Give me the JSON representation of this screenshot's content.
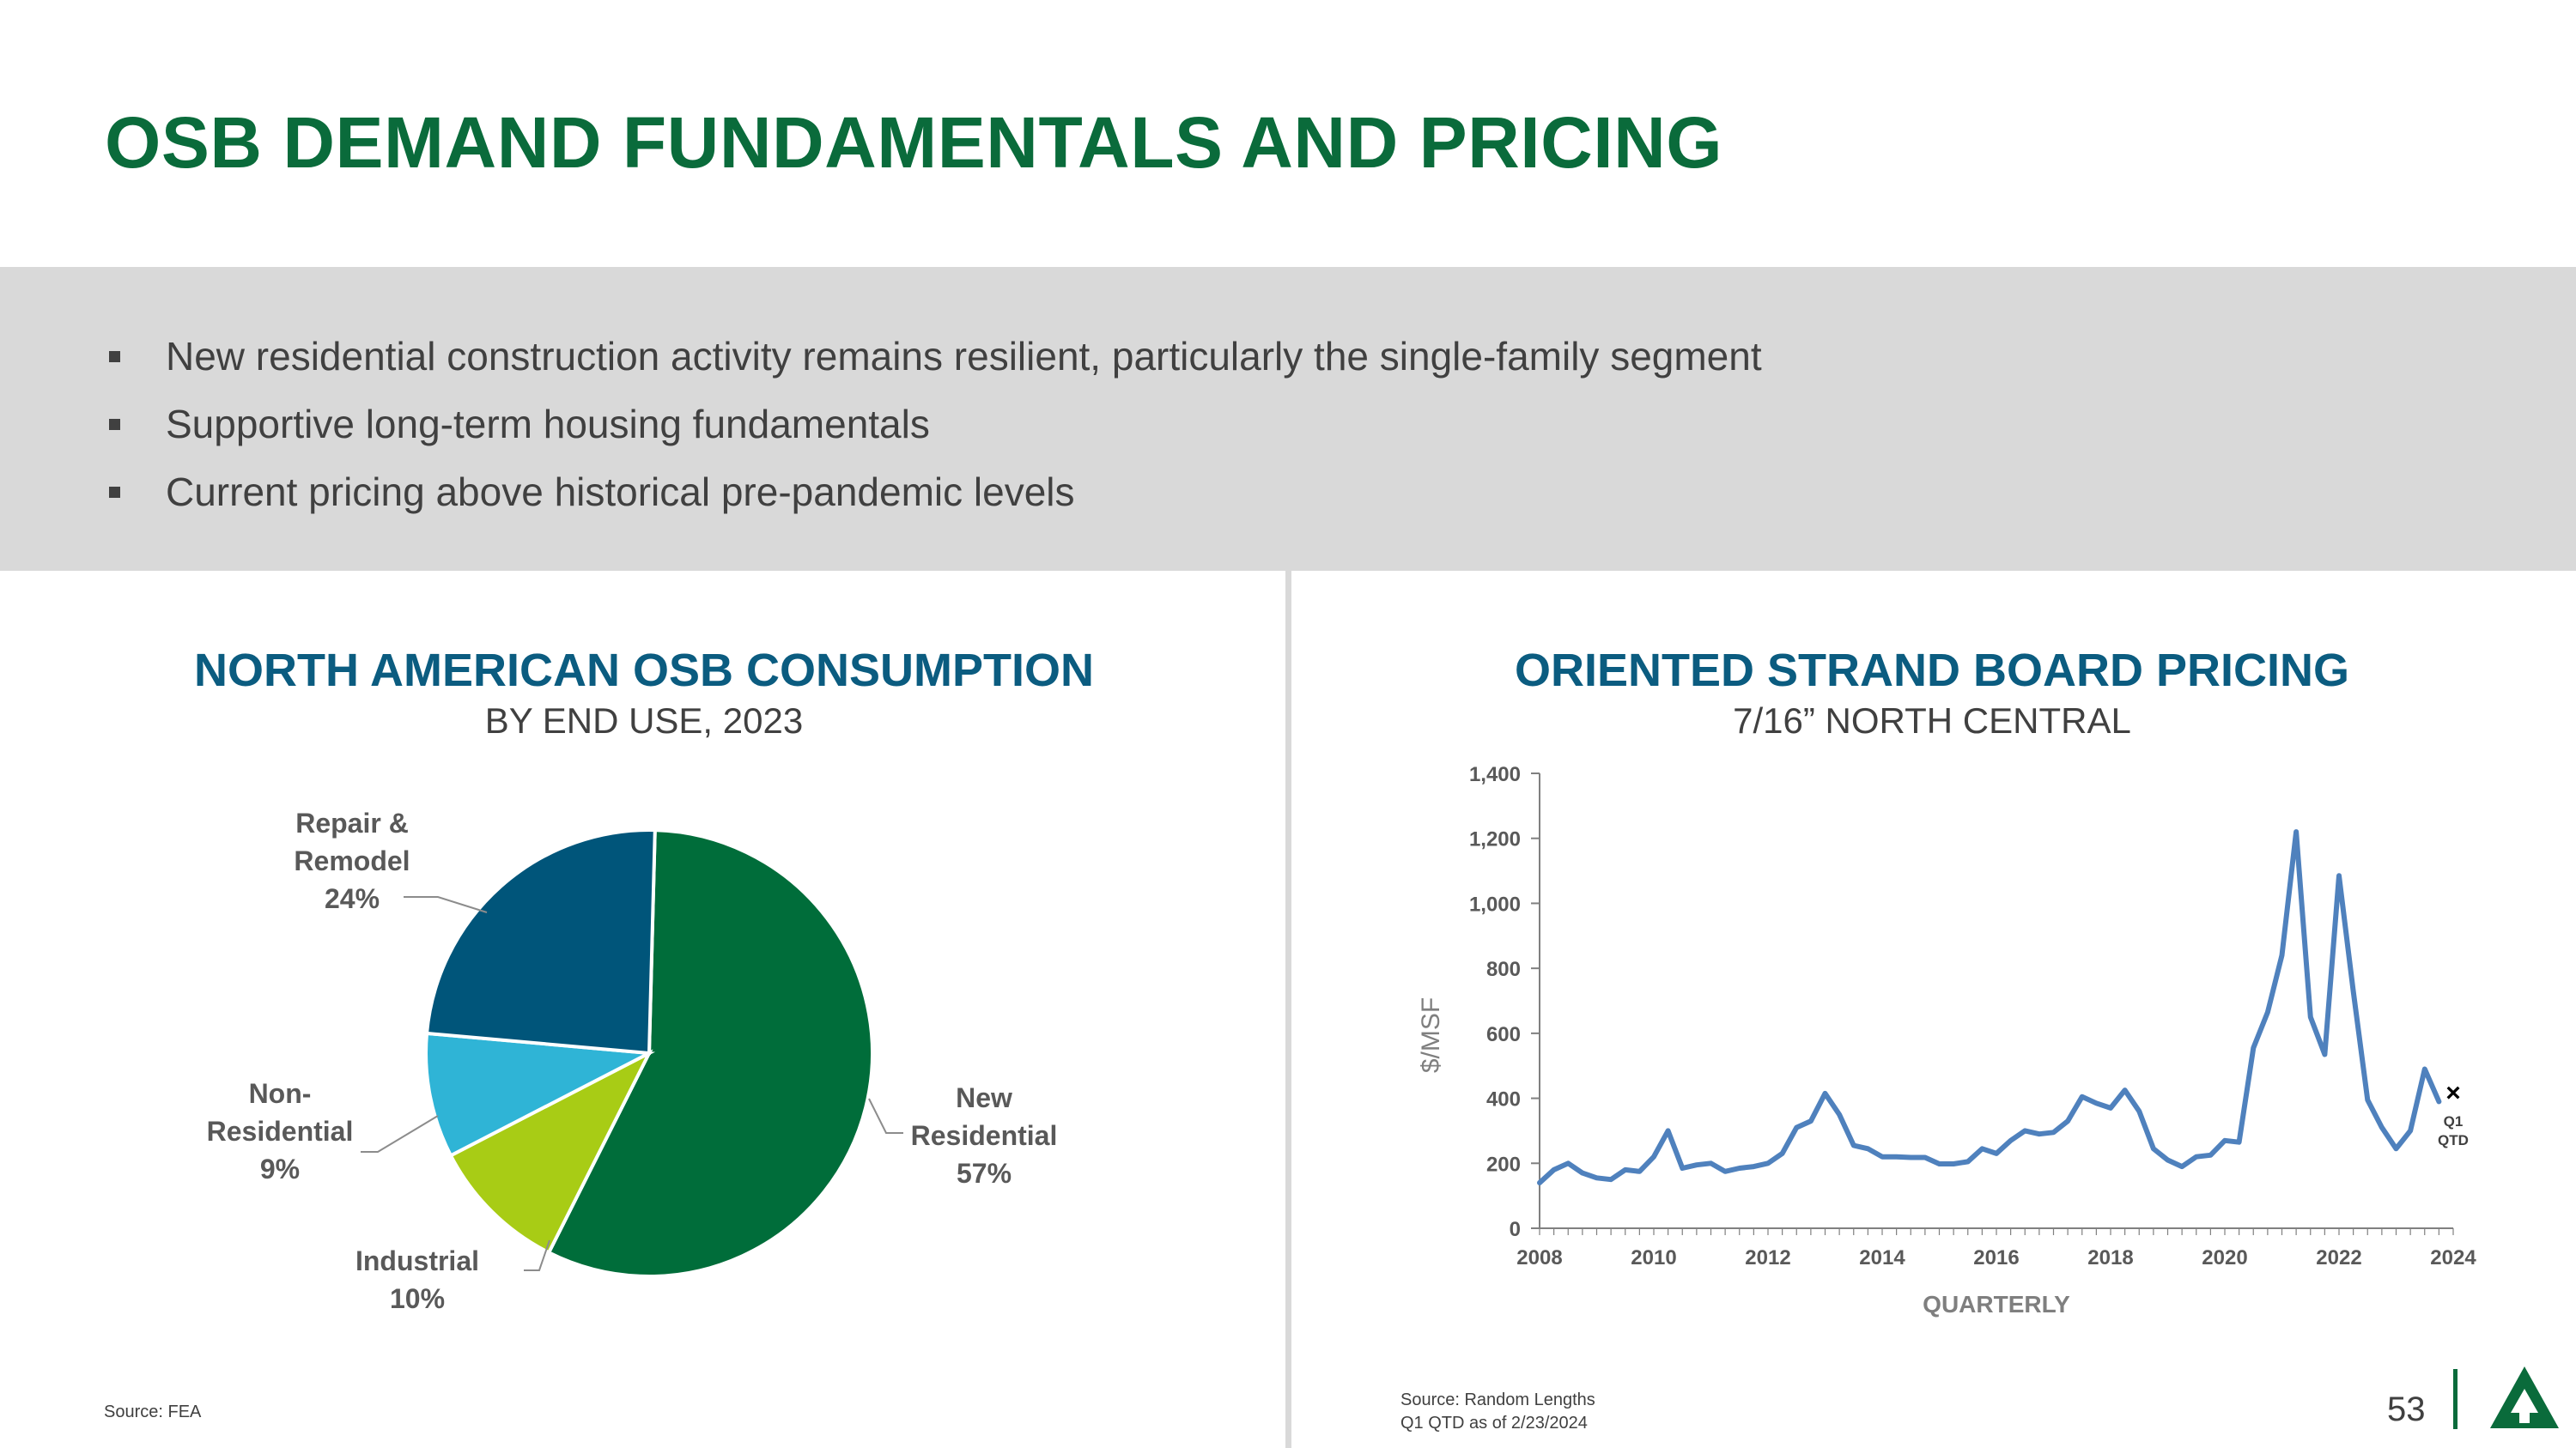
{
  "header": {
    "title": "OSB DEMAND FUNDAMENTALS AND PRICING"
  },
  "bullets": [
    "New residential construction activity remains resilient, particularly the single-family segment",
    "Supportive long-term housing fundamentals",
    "Current pricing above historical pre-pandemic levels"
  ],
  "left_panel": {
    "title": "NORTH AMERICAN OSB CONSUMPTION",
    "subtitle": "BY END USE, 2023",
    "source": "Source: FEA"
  },
  "right_panel": {
    "title": "ORIENTED STRAND BOARD PRICING",
    "subtitle": "7/16” NORTH CENTRAL",
    "source_line1": "Source: Random Lengths",
    "source_line2": "Q1 QTD as of 2/23/2024"
  },
  "footer": {
    "page_number": "53"
  },
  "colors": {
    "title_green": "#0a6b3b",
    "chart_title_blue": "#0b5c80",
    "line_blue": "#4f81bd"
  },
  "chart_data": [
    {
      "type": "pie",
      "categories": [
        "New Residential",
        "Industrial",
        "Non-Residential",
        "Repair & Remodel"
      ],
      "values": [
        57,
        10,
        9,
        24
      ],
      "labels": [
        [
          "New",
          "Residential",
          "57%"
        ],
        [
          "Industrial",
          "10%"
        ],
        [
          "Non-",
          "Residential",
          "9%"
        ],
        [
          "Repair &",
          "Remodel",
          "24%"
        ]
      ],
      "colors": [
        "#006d3a",
        "#a8cc15",
        "#2fb4d6",
        "#00557a"
      ]
    },
    {
      "type": "line",
      "xlabel": "QUARTERLY",
      "ylabel": "$/MSF",
      "ylim": [
        0,
        1400
      ],
      "xlim": [
        2008,
        2024
      ],
      "yticks": [
        "0",
        "200",
        "400",
        "600",
        "800",
        "1,000",
        "1,200",
        "1,400"
      ],
      "xticks": [
        "2008",
        "2010",
        "2012",
        "2014",
        "2016",
        "2018",
        "2020",
        "2022",
        "2024"
      ],
      "x": [
        2008.0,
        2008.25,
        2008.5,
        2008.75,
        2009.0,
        2009.25,
        2009.5,
        2009.75,
        2010.0,
        2010.25,
        2010.5,
        2010.75,
        2011.0,
        2011.25,
        2011.5,
        2011.75,
        2012.0,
        2012.25,
        2012.5,
        2012.75,
        2013.0,
        2013.25,
        2013.5,
        2013.75,
        2014.0,
        2014.25,
        2014.5,
        2014.75,
        2015.0,
        2015.25,
        2015.5,
        2015.75,
        2016.0,
        2016.25,
        2016.5,
        2016.75,
        2017.0,
        2017.25,
        2017.5,
        2017.75,
        2018.0,
        2018.25,
        2018.5,
        2018.75,
        2019.0,
        2019.25,
        2019.5,
        2019.75,
        2020.0,
        2020.25,
        2020.5,
        2020.75,
        2021.0,
        2021.25,
        2021.5,
        2021.75,
        2022.0,
        2022.25,
        2022.5,
        2022.75,
        2023.0,
        2023.25,
        2023.5,
        2023.75
      ],
      "values": [
        140,
        180,
        200,
        170,
        155,
        150,
        180,
        175,
        220,
        300,
        185,
        195,
        200,
        175,
        185,
        190,
        200,
        230,
        310,
        330,
        415,
        350,
        255,
        245,
        220,
        220,
        218,
        218,
        198,
        198,
        205,
        245,
        230,
        270,
        300,
        290,
        295,
        330,
        405,
        385,
        370,
        425,
        360,
        245,
        210,
        190,
        220,
        225,
        270,
        265,
        555,
        665,
        840,
        1220,
        650,
        535,
        1085,
        730,
        395,
        310,
        245,
        300,
        490,
        390
      ],
      "marker": {
        "x": 2024.0,
        "y": 415,
        "symbol": "×",
        "label_line1": "Q1",
        "label_line2": "QTD"
      }
    }
  ]
}
